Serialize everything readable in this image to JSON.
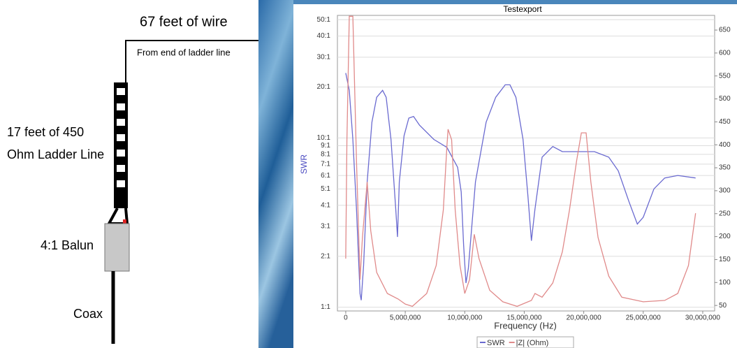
{
  "diagram": {
    "wire_label": "67 feet of wire",
    "wire_note": "From end of ladder line",
    "ladder_label_1": "17 feet of 450",
    "ladder_label_2": "Ohm Ladder Line",
    "balun_label": "4:1 Balun",
    "coax_label": "Coax"
  },
  "chart_data": {
    "type": "line",
    "title": "Testexport",
    "x_label": "Frequency (Hz)",
    "y_label": "SWR",
    "ylog": true,
    "grid": true,
    "xlim": [
      -700000,
      31000000
    ],
    "xticks": [
      0,
      {
        "value": 5000000,
        "label": "5,000,000"
      },
      {
        "value": 10000000,
        "label": "10,000,000"
      },
      {
        "value": 15000000,
        "label": "15,000,000"
      },
      {
        "value": 20000000,
        "label": "20,000,000"
      },
      {
        "value": 25000000,
        "label": "25,000,000"
      },
      {
        "value": 30000000,
        "label": "30,000,000"
      }
    ],
    "ylim": [
      0.95,
      53
    ],
    "yticks": [
      {
        "value": 1,
        "label": "1:1"
      },
      {
        "value": 2,
        "label": "2:1"
      },
      {
        "value": 3,
        "label": "3:1"
      },
      {
        "value": 4,
        "label": "4:1"
      },
      {
        "value": 5,
        "label": "5:1"
      },
      {
        "value": 6,
        "label": "6:1"
      },
      {
        "value": 7,
        "label": "7:1"
      },
      {
        "value": 8,
        "label": "8:1"
      },
      {
        "value": 9,
        "label": "9:1"
      },
      {
        "value": 10,
        "label": "10:1"
      },
      {
        "value": 20,
        "label": "20:1"
      },
      {
        "value": 30,
        "label": "30:1"
      },
      {
        "value": 40,
        "label": "40:1"
      },
      {
        "value": 50,
        "label": "50:1"
      }
    ],
    "y2lim": [
      38,
      682
    ],
    "y2ticks": [
      50,
      100,
      150,
      200,
      250,
      300,
      350,
      400,
      450,
      500,
      550,
      600,
      650
    ],
    "series": [
      {
        "name": "SWR",
        "color": "#6a6ad0",
        "x": [
          0,
          300000,
          600000,
          900000,
          1200000,
          1300000,
          1500000,
          1800000,
          2200000,
          2600000,
          3100000,
          3400000,
          3800000,
          4200000,
          4350000,
          4500000,
          4900000,
          5300000,
          5700000,
          6200000,
          7400000,
          8500000,
          9400000,
          9700000,
          9900000,
          10100000,
          10300000,
          10900000,
          11800000,
          12600000,
          13400000,
          13800000,
          14300000,
          14900000,
          15300000,
          15600000,
          15900000,
          16500000,
          17400000,
          18200000,
          19100000,
          20900000,
          22100000,
          22900000,
          23800000,
          24500000,
          25000000,
          25900000,
          26800000,
          27900000,
          29400000
        ],
        "values": [
          24.2,
          19.1,
          9.8,
          3.8,
          1.2,
          1.1,
          1.77,
          5.5,
          12.4,
          17.4,
          19.1,
          17.4,
          9.8,
          3.8,
          2.6,
          5.5,
          10.3,
          13.1,
          13.4,
          11.9,
          9.8,
          8.8,
          6.7,
          4.8,
          2.35,
          1.39,
          1.69,
          5.5,
          12.4,
          17.4,
          20.6,
          20.6,
          17.4,
          9.8,
          4.6,
          2.47,
          3.8,
          7.7,
          8.9,
          8.3,
          8.3,
          8.3,
          7.7,
          6.4,
          4.2,
          3.1,
          3.4,
          5.0,
          5.8,
          6.0,
          5.8
        ]
      },
      {
        "name": "|Z| (Ohm)",
        "color": "#e08a8a",
        "axis": "y2",
        "x": [
          0,
          100000,
          300000,
          600000,
          900000,
          1200000,
          1400000,
          1800000,
          2100000,
          2600000,
          3500000,
          4400000,
          5000000,
          5600000,
          6800000,
          7600000,
          8200000,
          8500000,
          8600000,
          8900000,
          9200000,
          9600000,
          10000000,
          10400000,
          10800000,
          11200000,
          12100000,
          13200000,
          14400000,
          15600000,
          15900000,
          16500000,
          17400000,
          18200000,
          18800000,
          19400000,
          19800000,
          20200000,
          20600000,
          21200000,
          22100000,
          23200000,
          25000000,
          26800000,
          27900000,
          28800000,
          29400000
        ],
        "values": [
          152,
          410,
          680,
          680,
          365,
          106,
          198,
          319,
          213,
          122,
          76,
          64,
          53,
          48,
          76,
          137,
          258,
          396,
          434,
          411,
          258,
          137,
          76,
          106,
          205,
          152,
          83,
          58,
          48,
          61,
          76,
          68,
          99,
          167,
          258,
          365,
          426,
          426,
          319,
          198,
          114,
          68,
          58,
          61,
          76,
          137,
          251
        ]
      }
    ]
  }
}
